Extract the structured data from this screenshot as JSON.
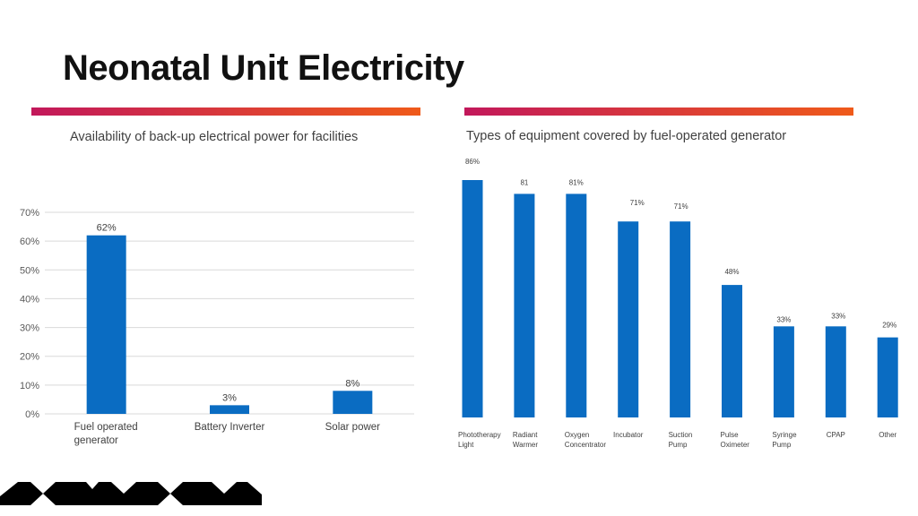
{
  "slide": {
    "title": "Neonatal Unit Electricity"
  },
  "colors": {
    "bar": "#0a6cc2",
    "rule_start": "#c2185b",
    "rule_end": "#ef5a1a",
    "grid": "#d9d9d9"
  },
  "chart_data": [
    {
      "type": "bar",
      "title": "Availability of back-up electrical power for facilities",
      "categories": [
        "Fuel operated generator",
        "Battery Inverter",
        "Solar power"
      ],
      "category_lines": [
        [
          "Fuel operated",
          "generator"
        ],
        [
          "Battery Inverter"
        ],
        [
          "Solar power"
        ]
      ],
      "values": [
        62,
        3,
        8
      ],
      "data_labels": [
        "62%",
        "3%",
        "8%"
      ],
      "ylim": [
        0,
        70
      ],
      "yticks": [
        0,
        10,
        20,
        30,
        40,
        50,
        60,
        70
      ],
      "ytick_labels": [
        "0%",
        "10%",
        "20%",
        "30%",
        "40%",
        "50%",
        "60%",
        "70%"
      ],
      "grid": true
    },
    {
      "type": "bar",
      "title": "Types of equipment covered by fuel-operated generator",
      "categories": [
        "Phototherapy Light",
        "Radiant Warmer",
        "Oxygen Concentrator",
        "Incubator",
        "Suction Pump",
        "Pulse Oximeter",
        "Syringe Pump",
        "CPAP",
        "Other"
      ],
      "category_lines": [
        [
          "Phototherapy",
          "Light"
        ],
        [
          "Radiant",
          "Warmer"
        ],
        [
          "Oxygen",
          "Concentrator"
        ],
        [
          "Incubator"
        ],
        [
          "Suction",
          "Pump"
        ],
        [
          "Pulse",
          "Oximeter"
        ],
        [
          "Syringe",
          "Pump"
        ],
        [
          "CPAP"
        ],
        [
          "Other"
        ]
      ],
      "values": [
        86,
        81,
        81,
        71,
        71,
        48,
        33,
        33,
        29
      ],
      "data_labels": [
        "86%",
        "81",
        "81%",
        "71%",
        "71%",
        "48%",
        "33%",
        "33%",
        "29%"
      ],
      "grid": false
    }
  ]
}
